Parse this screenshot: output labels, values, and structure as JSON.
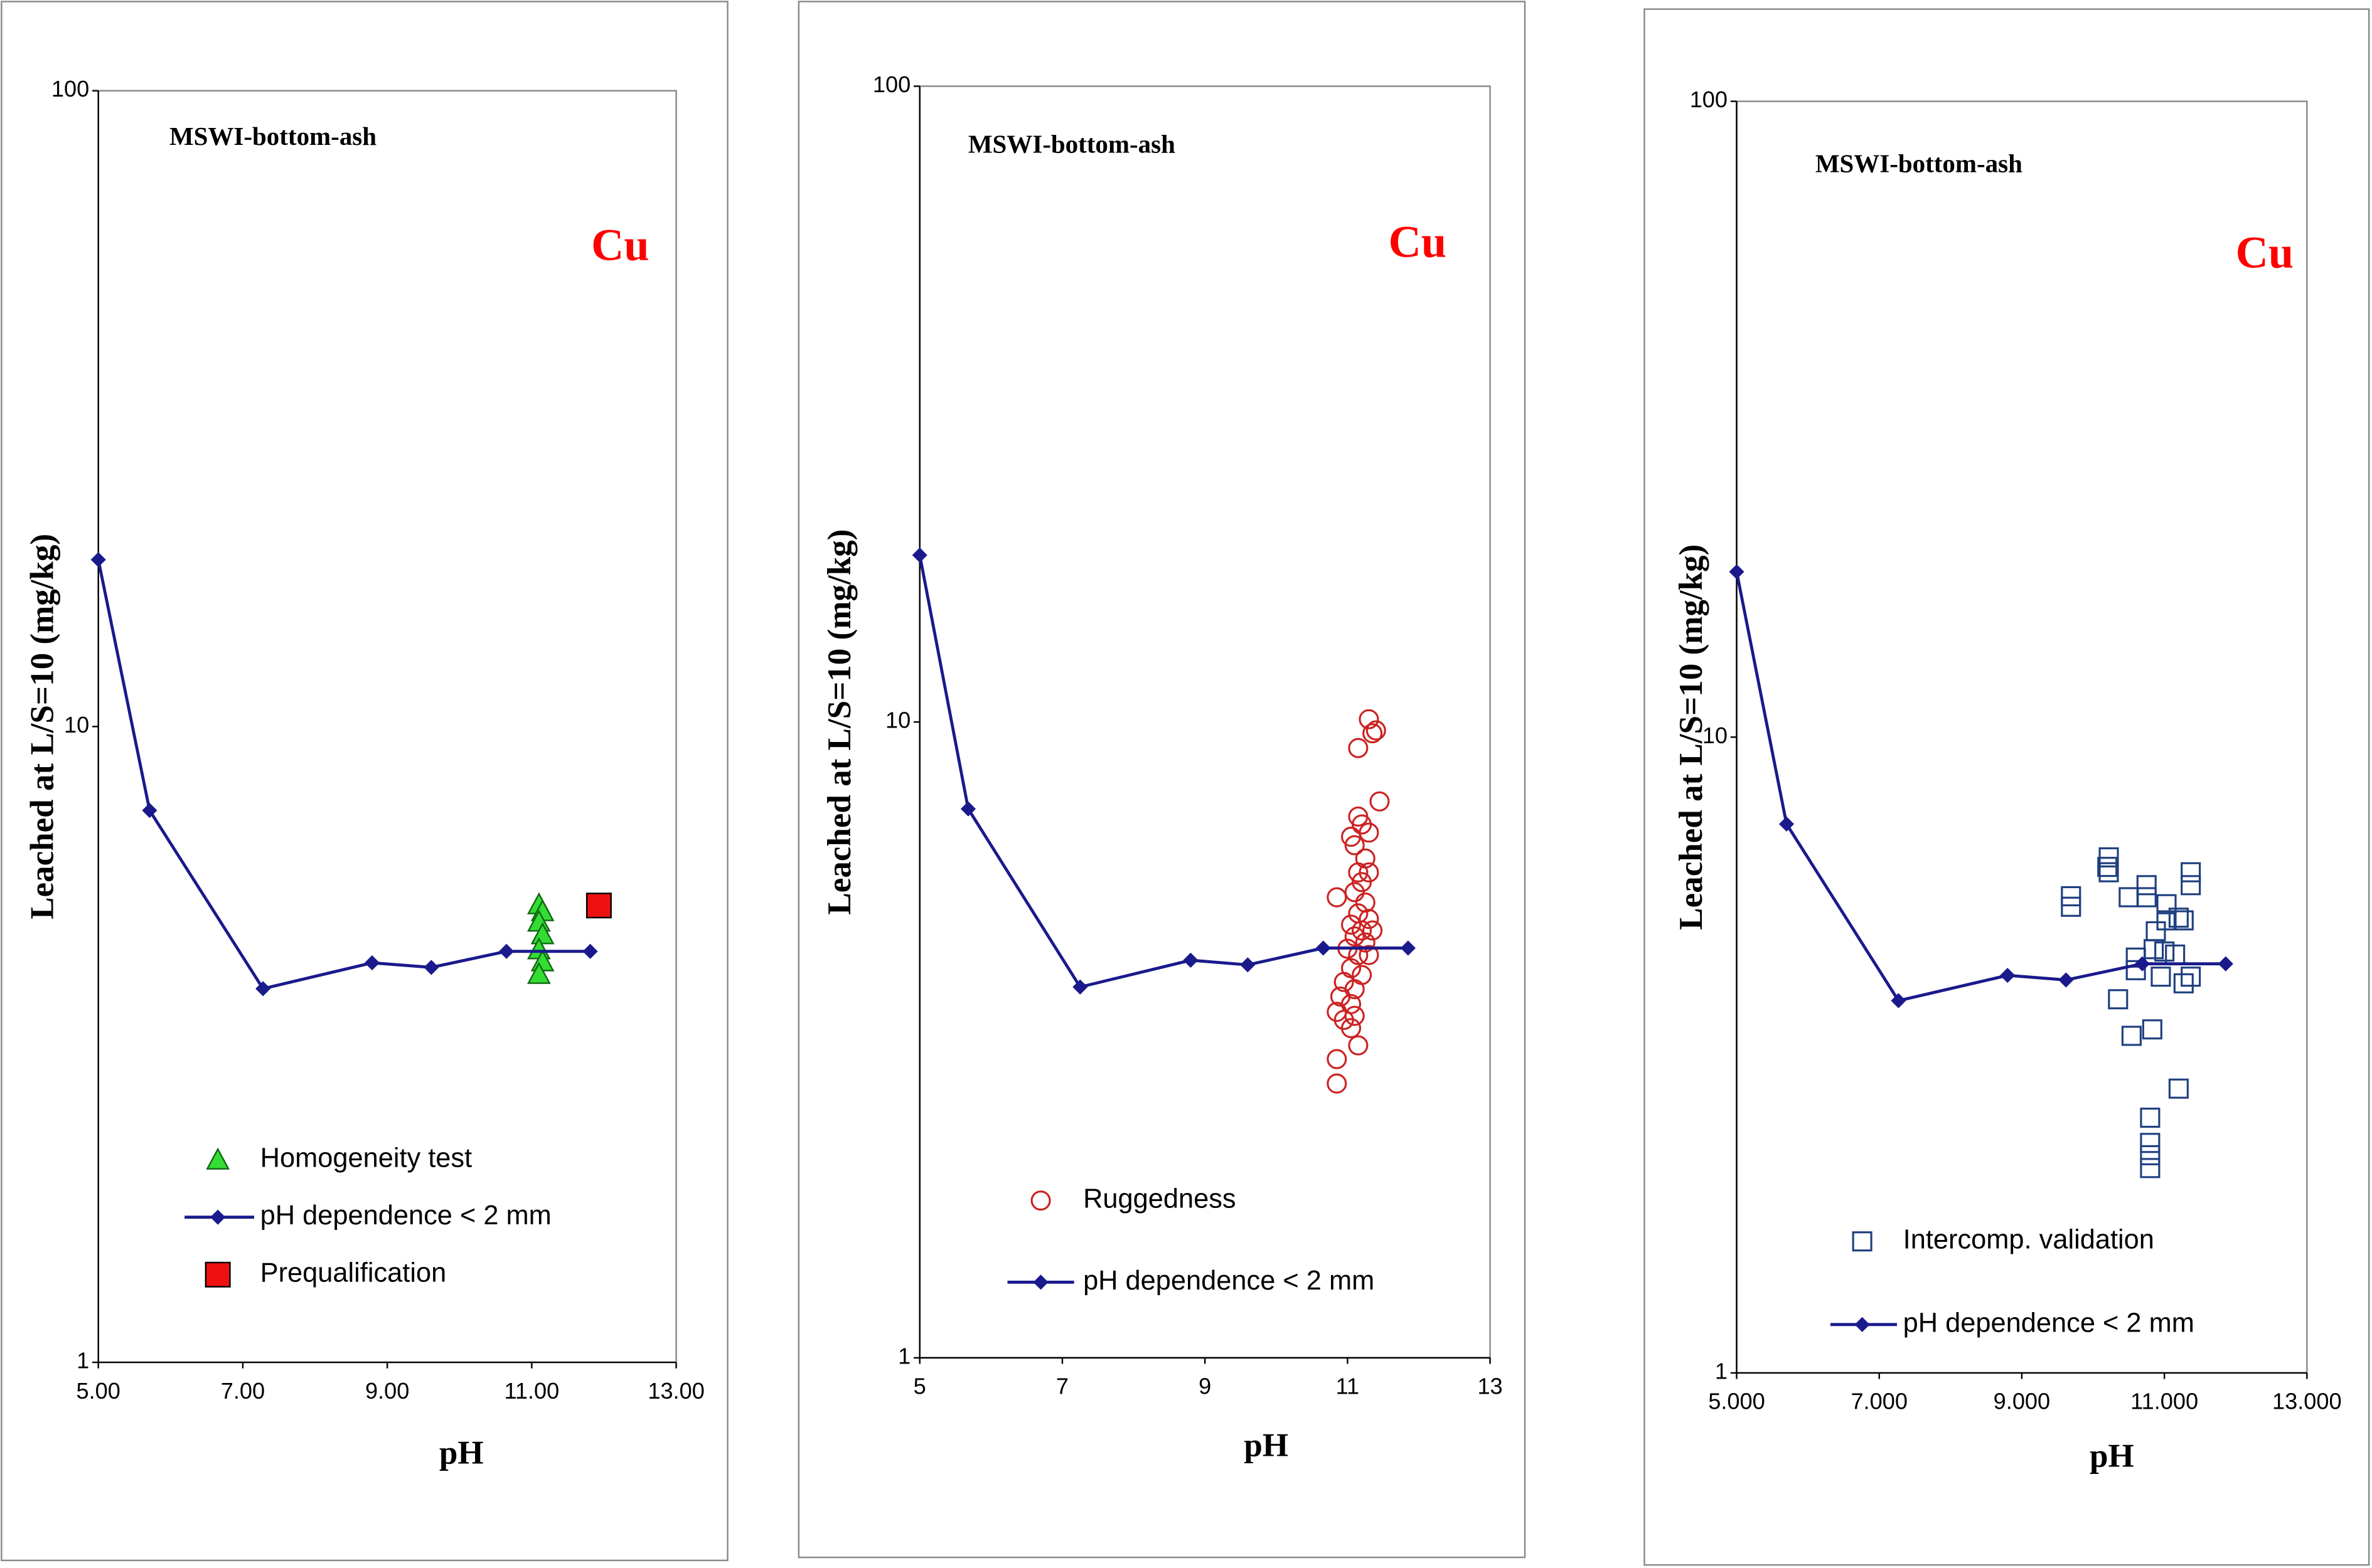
{
  "chart_data": [
    {
      "type": "scatter",
      "title": "MSWI-bottom-ash",
      "annotation": "Cu",
      "x_label": "pH",
      "y_label": "Leached at L/S=10 (mg/kg)",
      "log_y": true,
      "xlim": [
        5,
        13
      ],
      "ylim": [
        1,
        100
      ],
      "xticks": [
        {
          "value": 5,
          "label": "5.00"
        },
        {
          "value": 7,
          "label": "7.00"
        },
        {
          "value": 9,
          "label": "9.00"
        },
        {
          "value": 11,
          "label": "11.00"
        },
        {
          "value": 13,
          "label": "13.00"
        }
      ],
      "yticks": [
        1,
        10,
        100
      ],
      "series": [
        {
          "name": "Homogeneity test",
          "color": "#33dd33",
          "marker": "triangle",
          "x": [
            11.1,
            11.15,
            11.1,
            11.15,
            11.1,
            11.15,
            11.1
          ],
          "values": [
            5.25,
            5.12,
            4.93,
            4.71,
            4.46,
            4.27,
            4.08
          ]
        },
        {
          "name": "pH dependence < 2 mm",
          "color": "#1a1a8c",
          "marker": "diamond",
          "line": true,
          "x": [
            5.0,
            5.71,
            7.28,
            8.79,
            9.61,
            10.65,
            11.81
          ],
          "values": [
            18.3,
            7.38,
            3.87,
            4.25,
            4.18,
            4.43,
            4.43
          ]
        },
        {
          "name": "Prequalification",
          "color": "#ee1111",
          "marker": "bigsquare",
          "x": [
            11.93
          ],
          "values": [
            5.23
          ]
        }
      ]
    },
    {
      "type": "scatter",
      "title": "MSWI-bottom-ash",
      "annotation": "Cu",
      "x_label": "pH",
      "y_label": "Leached at L/S=10 (mg/kg)",
      "log_y": true,
      "xlim": [
        5,
        13
      ],
      "ylim": [
        1,
        100
      ],
      "xticks": [
        5,
        7,
        9,
        11,
        13
      ],
      "yticks": [
        1,
        10,
        100
      ],
      "series": [
        {
          "name": "Ruggedness",
          "color": "#cc2222",
          "marker": "circle",
          "x": [
            11.3,
            11.35,
            11.4,
            11.15,
            11.45,
            11.15,
            11.2,
            11.05,
            11.3,
            11.1,
            11.25,
            11.15,
            11.3,
            11.2,
            11.1,
            10.85,
            11.25,
            11.15,
            11.3,
            11.05,
            11.2,
            11.35,
            11.1,
            11.25,
            11.0,
            11.15,
            11.3,
            11.05,
            11.2,
            10.95,
            11.1,
            10.9,
            11.05,
            10.85,
            11.1,
            10.95,
            11.05,
            11.15,
            10.85,
            10.85
          ],
          "values": [
            10.1,
            9.6,
            9.7,
            9.1,
            7.5,
            7.1,
            6.9,
            6.6,
            6.7,
            6.4,
            6.1,
            5.8,
            5.8,
            5.6,
            5.4,
            5.3,
            5.2,
            5.0,
            4.9,
            4.8,
            4.7,
            4.7,
            4.6,
            4.5,
            4.4,
            4.3,
            4.3,
            4.1,
            4.0,
            3.9,
            3.8,
            3.7,
            3.6,
            3.5,
            3.45,
            3.4,
            3.3,
            3.1,
            2.95,
            2.7
          ]
        },
        {
          "name": "pH dependence < 2 mm",
          "color": "#1a1a8c",
          "marker": "diamond",
          "line": true,
          "x": [
            5.0,
            5.68,
            7.25,
            8.8,
            9.6,
            10.66,
            11.85
          ],
          "values": [
            18.3,
            7.3,
            3.83,
            4.22,
            4.15,
            4.41,
            4.41
          ]
        }
      ]
    },
    {
      "type": "scatter",
      "title": "MSWI-bottom-ash",
      "annotation": "Cu",
      "x_label": "pH",
      "y_label": "Leached at L/S=10 (mg/kg)",
      "log_y": true,
      "xlim": [
        5,
        13
      ],
      "ylim": [
        1,
        100
      ],
      "xticks": [
        {
          "value": 5,
          "label": "5.000"
        },
        {
          "value": 7,
          "label": "7.000"
        },
        {
          "value": 9,
          "label": "9.000"
        },
        {
          "value": 11,
          "label": "11.000"
        },
        {
          "value": 13,
          "label": "13.000"
        }
      ],
      "yticks": [
        1,
        10,
        100
      ],
      "series": [
        {
          "name": "Intercomp. validation",
          "color": "#1f3f7f",
          "marker": "square",
          "x": [
            10.22,
            10.22,
            10.2,
            9.69,
            9.69,
            10.75,
            10.75,
            10.5,
            11.37,
            11.37,
            11.03,
            11.03,
            11.2,
            11.27,
            10.88,
            10.85,
            10.6,
            10.6,
            11.0,
            11.15,
            11.27,
            11.37,
            10.95,
            10.35,
            10.54,
            10.83,
            11.2,
            10.8,
            10.8,
            10.8,
            10.8
          ],
          "values": [
            6.47,
            6.13,
            6.25,
            5.62,
            5.41,
            5.85,
            5.6,
            5.6,
            6.13,
            5.85,
            5.46,
            5.15,
            5.2,
            5.15,
            4.95,
            4.64,
            4.5,
            4.3,
            4.6,
            4.55,
            4.1,
            4.2,
            4.2,
            3.87,
            3.39,
            3.47,
            2.8,
            2.52,
            2.3,
            2.2,
            2.1
          ]
        },
        {
          "name": "pH dependence < 2 mm",
          "color": "#1a1a8c",
          "marker": "diamond",
          "line": true,
          "x": [
            5.0,
            5.7,
            7.27,
            8.8,
            9.62,
            10.69,
            11.86
          ],
          "values": [
            18.2,
            7.3,
            3.85,
            4.22,
            4.15,
            4.4,
            4.4
          ]
        }
      ]
    }
  ]
}
